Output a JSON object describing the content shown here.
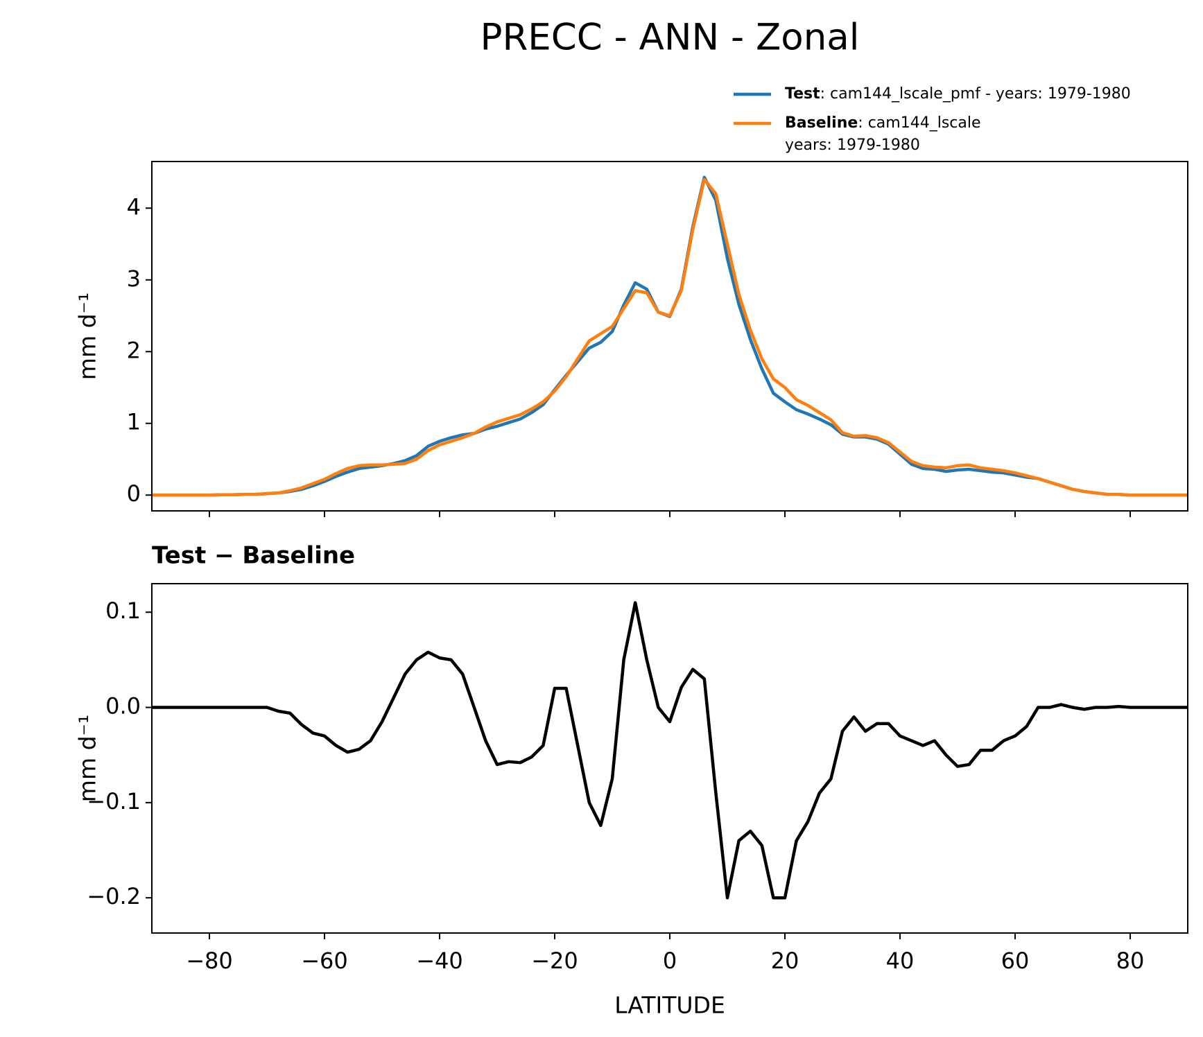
{
  "chart_data": [
    {
      "type": "line",
      "title": "PRECC - ANN - Zonal",
      "ylabel": "mm d⁻¹",
      "x": [
        -90,
        -88,
        -86,
        -84,
        -82,
        -80,
        -78,
        -76,
        -74,
        -72,
        -70,
        -68,
        -66,
        -64,
        -62,
        -60,
        -58,
        -56,
        -54,
        -52,
        -50,
        -48,
        -46,
        -44,
        -42,
        -40,
        -38,
        -36,
        -34,
        -32,
        -30,
        -28,
        -26,
        -24,
        -22,
        -20,
        -18,
        -16,
        -14,
        -12,
        -10,
        -8,
        -6,
        -4,
        -2,
        0,
        2,
        4,
        6,
        8,
        10,
        12,
        14,
        16,
        18,
        20,
        22,
        24,
        26,
        28,
        30,
        32,
        34,
        36,
        38,
        40,
        42,
        44,
        46,
        48,
        50,
        52,
        54,
        56,
        58,
        60,
        62,
        64,
        66,
        68,
        70,
        72,
        74,
        76,
        78,
        80,
        82,
        84,
        86,
        88,
        90
      ],
      "series": [
        {
          "name": "Test",
          "description": [
            ": cam144_lscale_pmf - years: 1979-1980"
          ],
          "color": "#1f77b4",
          "values": [
            0,
            0,
            0,
            0,
            0,
            0,
            0.005,
            0.005,
            0.01,
            0.01,
            0.02,
            0.03,
            0.05,
            0.08,
            0.13,
            0.19,
            0.26,
            0.32,
            0.37,
            0.39,
            0.41,
            0.44,
            0.48,
            0.55,
            0.68,
            0.75,
            0.8,
            0.84,
            0.86,
            0.92,
            0.96,
            1.01,
            1.06,
            1.15,
            1.26,
            1.47,
            1.67,
            1.86,
            2.05,
            2.13,
            2.28,
            2.65,
            2.96,
            2.87,
            2.55,
            2.49,
            2.87,
            3.74,
            4.43,
            4.11,
            3.3,
            2.66,
            2.17,
            1.76,
            1.42,
            1.3,
            1.19,
            1.13,
            1.06,
            0.98,
            0.85,
            0.81,
            0.81,
            0.78,
            0.71,
            0.57,
            0.43,
            0.37,
            0.36,
            0.33,
            0.35,
            0.36,
            0.34,
            0.32,
            0.31,
            0.28,
            0.25,
            0.23,
            0.18,
            0.13,
            0.08,
            0.05,
            0.03,
            0.01,
            0.01,
            0,
            0,
            0,
            0,
            0,
            0
          ]
        },
        {
          "name": "Baseline",
          "description": [
            ": cam144_lscale",
            "years: 1979-1980"
          ],
          "color": "#ff7f0e",
          "values": [
            0,
            0,
            0,
            0,
            0,
            0,
            0.005,
            0.005,
            0.01,
            0.01,
            0.02,
            0.03,
            0.06,
            0.1,
            0.16,
            0.22,
            0.3,
            0.37,
            0.41,
            0.42,
            0.42,
            0.43,
            0.44,
            0.5,
            0.62,
            0.7,
            0.75,
            0.8,
            0.86,
            0.95,
            1.02,
            1.07,
            1.12,
            1.2,
            1.3,
            1.45,
            1.65,
            1.9,
            2.15,
            2.25,
            2.35,
            2.6,
            2.85,
            2.82,
            2.55,
            2.5,
            2.85,
            3.7,
            4.4,
            4.2,
            3.5,
            2.8,
            2.3,
            1.9,
            1.62,
            1.5,
            1.33,
            1.25,
            1.15,
            1.05,
            0.87,
            0.82,
            0.83,
            0.8,
            0.73,
            0.6,
            0.47,
            0.41,
            0.39,
            0.38,
            0.41,
            0.42,
            0.38,
            0.36,
            0.34,
            0.31,
            0.27,
            0.23,
            0.18,
            0.13,
            0.08,
            0.05,
            0.03,
            0.01,
            0.01,
            0,
            0,
            0,
            0,
            0,
            0
          ]
        }
      ],
      "xlim": [
        -90,
        90
      ],
      "xticks": [
        -80,
        -60,
        -40,
        -20,
        0,
        20,
        40,
        60,
        80
      ],
      "ylim": [
        -0.22,
        4.65
      ],
      "yticks": [
        0,
        1,
        2,
        3,
        4
      ]
    },
    {
      "type": "line",
      "title": "Test − Baseline",
      "ylabel": "mm d⁻¹",
      "xlabel": "LATITUDE",
      "x": [
        -90,
        -88,
        -86,
        -84,
        -82,
        -80,
        -78,
        -76,
        -74,
        -72,
        -70,
        -68,
        -66,
        -64,
        -62,
        -60,
        -58,
        -56,
        -54,
        -52,
        -50,
        -48,
        -46,
        -44,
        -42,
        -40,
        -38,
        -36,
        -34,
        -32,
        -30,
        -28,
        -26,
        -24,
        -22,
        -20,
        -18,
        -16,
        -14,
        -12,
        -10,
        -8,
        -6,
        -4,
        -2,
        0,
        2,
        4,
        6,
        8,
        10,
        12,
        14,
        16,
        18,
        20,
        22,
        24,
        26,
        28,
        30,
        32,
        34,
        36,
        38,
        40,
        42,
        44,
        46,
        48,
        50,
        52,
        54,
        56,
        58,
        60,
        62,
        64,
        66,
        68,
        70,
        72,
        74,
        76,
        78,
        80,
        82,
        84,
        86,
        88,
        90
      ],
      "series": [
        {
          "color": "#000000",
          "values": [
            0,
            0,
            0,
            0,
            0,
            0,
            0,
            0,
            0,
            0,
            0,
            -0.004,
            -0.006,
            -0.018,
            -0.027,
            -0.03,
            -0.04,
            -0.047,
            -0.044,
            -0.035,
            -0.015,
            0.01,
            0.035,
            0.05,
            0.058,
            0.052,
            0.05,
            0.035,
            0,
            -0.035,
            -0.06,
            -0.057,
            -0.058,
            -0.052,
            -0.04,
            0.02,
            0.02,
            -0.04,
            -0.1,
            -0.124,
            -0.075,
            0.05,
            0.11,
            0.05,
            0,
            -0.015,
            0.021,
            0.04,
            0.03,
            -0.09,
            -0.2,
            -0.14,
            -0.13,
            -0.145,
            -0.2,
            -0.2,
            -0.14,
            -0.12,
            -0.09,
            -0.075,
            -0.025,
            -0.01,
            -0.025,
            -0.017,
            -0.017,
            -0.03,
            -0.035,
            -0.04,
            -0.035,
            -0.05,
            -0.062,
            -0.06,
            -0.045,
            -0.045,
            -0.035,
            -0.03,
            -0.02,
            0,
            0,
            0.003,
            0,
            -0.002,
            0,
            0,
            0.001,
            0,
            0,
            0,
            0,
            0,
            0
          ]
        }
      ],
      "xlim": [
        -90,
        90
      ],
      "xticks": [
        {
          "value": -80,
          "label": "−80"
        },
        {
          "value": -60,
          "label": "−60"
        },
        {
          "value": -40,
          "label": "−40"
        },
        {
          "value": -20,
          "label": "−20"
        },
        0,
        20,
        40,
        60,
        80
      ],
      "ylim": [
        -0.237,
        0.13
      ],
      "yticks": [
        {
          "value": -0.2,
          "label": "−0.2"
        },
        {
          "value": -0.1,
          "label": "−0.1"
        },
        {
          "value": 0,
          "label": "0.0"
        },
        0.1
      ]
    }
  ]
}
